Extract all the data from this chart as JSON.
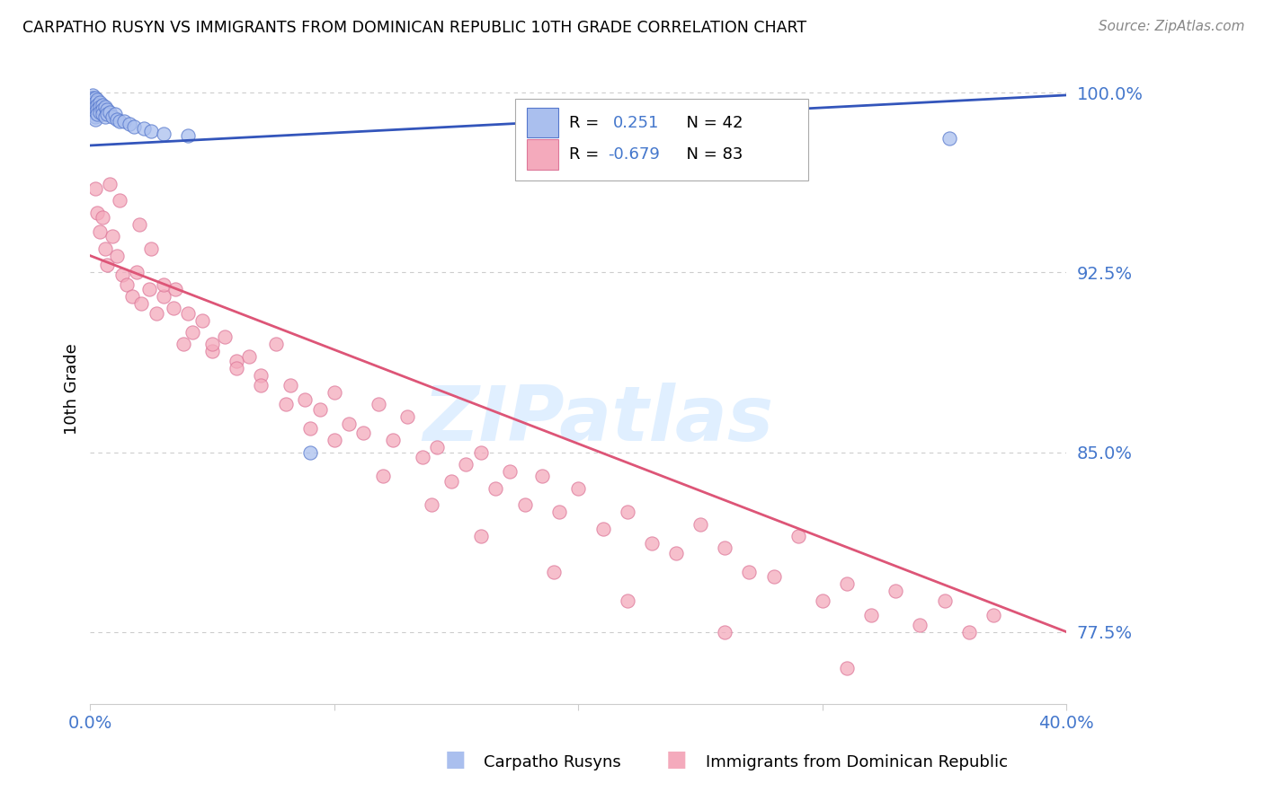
{
  "title": "CARPATHO RUSYN VS IMMIGRANTS FROM DOMINICAN REPUBLIC 10TH GRADE CORRELATION CHART",
  "source": "Source: ZipAtlas.com",
  "ylabel": "10th Grade",
  "xmin": 0.0,
  "xmax": 0.4,
  "ymin": 0.745,
  "ymax": 1.008,
  "yticks": [
    0.775,
    0.85,
    0.925,
    1.0
  ],
  "ytick_labels": [
    "77.5%",
    "85.0%",
    "92.5%",
    "100.0%"
  ],
  "blue_R": 0.251,
  "blue_N": 42,
  "pink_R": -0.679,
  "pink_N": 83,
  "blue_fill_color": "#AABFEE",
  "blue_edge_color": "#5577CC",
  "pink_fill_color": "#F4AABC",
  "pink_edge_color": "#DD7799",
  "blue_line_color": "#3355BB",
  "pink_line_color": "#DD5577",
  "axis_label_color": "#4477CC",
  "watermark": "ZIPatlas",
  "watermark_color": "#DDEEFF",
  "blue_trend_y0": 0.978,
  "blue_trend_y1": 0.999,
  "pink_trend_y0": 0.932,
  "pink_trend_y1": 0.775,
  "blue_scatter_x": [
    0.001,
    0.001,
    0.001,
    0.001,
    0.001,
    0.001,
    0.001,
    0.001,
    0.002,
    0.002,
    0.002,
    0.002,
    0.002,
    0.002,
    0.003,
    0.003,
    0.003,
    0.003,
    0.004,
    0.004,
    0.004,
    0.005,
    0.005,
    0.005,
    0.006,
    0.006,
    0.007,
    0.007,
    0.008,
    0.009,
    0.01,
    0.011,
    0.012,
    0.014,
    0.016,
    0.018,
    0.022,
    0.025,
    0.03,
    0.04,
    0.09,
    0.352
  ],
  "blue_scatter_y": [
    0.999,
    0.998,
    0.997,
    0.996,
    0.995,
    0.994,
    0.993,
    0.992,
    0.998,
    0.996,
    0.994,
    0.992,
    0.99,
    0.989,
    0.997,
    0.995,
    0.993,
    0.991,
    0.996,
    0.994,
    0.992,
    0.995,
    0.993,
    0.991,
    0.994,
    0.99,
    0.993,
    0.991,
    0.992,
    0.99,
    0.991,
    0.989,
    0.988,
    0.988,
    0.987,
    0.986,
    0.985,
    0.984,
    0.983,
    0.982,
    0.85,
    0.981
  ],
  "pink_scatter_x": [
    0.002,
    0.003,
    0.004,
    0.005,
    0.006,
    0.007,
    0.009,
    0.011,
    0.013,
    0.015,
    0.017,
    0.019,
    0.021,
    0.024,
    0.027,
    0.03,
    0.034,
    0.038,
    0.042,
    0.046,
    0.05,
    0.055,
    0.06,
    0.065,
    0.07,
    0.076,
    0.082,
    0.088,
    0.094,
    0.1,
    0.106,
    0.112,
    0.118,
    0.124,
    0.13,
    0.136,
    0.142,
    0.148,
    0.154,
    0.16,
    0.166,
    0.172,
    0.178,
    0.185,
    0.192,
    0.2,
    0.21,
    0.22,
    0.23,
    0.24,
    0.25,
    0.26,
    0.27,
    0.28,
    0.29,
    0.3,
    0.31,
    0.32,
    0.33,
    0.34,
    0.35,
    0.36,
    0.37,
    0.008,
    0.012,
    0.02,
    0.025,
    0.03,
    0.035,
    0.04,
    0.05,
    0.06,
    0.07,
    0.08,
    0.09,
    0.1,
    0.12,
    0.14,
    0.16,
    0.19,
    0.22,
    0.26,
    0.31
  ],
  "pink_scatter_y": [
    0.96,
    0.95,
    0.942,
    0.948,
    0.935,
    0.928,
    0.94,
    0.932,
    0.924,
    0.92,
    0.915,
    0.925,
    0.912,
    0.918,
    0.908,
    0.915,
    0.91,
    0.895,
    0.9,
    0.905,
    0.892,
    0.898,
    0.888,
    0.89,
    0.882,
    0.895,
    0.878,
    0.872,
    0.868,
    0.875,
    0.862,
    0.858,
    0.87,
    0.855,
    0.865,
    0.848,
    0.852,
    0.838,
    0.845,
    0.85,
    0.835,
    0.842,
    0.828,
    0.84,
    0.825,
    0.835,
    0.818,
    0.825,
    0.812,
    0.808,
    0.82,
    0.81,
    0.8,
    0.798,
    0.815,
    0.788,
    0.795,
    0.782,
    0.792,
    0.778,
    0.788,
    0.775,
    0.782,
    0.962,
    0.955,
    0.945,
    0.935,
    0.92,
    0.918,
    0.908,
    0.895,
    0.885,
    0.878,
    0.87,
    0.86,
    0.855,
    0.84,
    0.828,
    0.815,
    0.8,
    0.788,
    0.775,
    0.76
  ]
}
